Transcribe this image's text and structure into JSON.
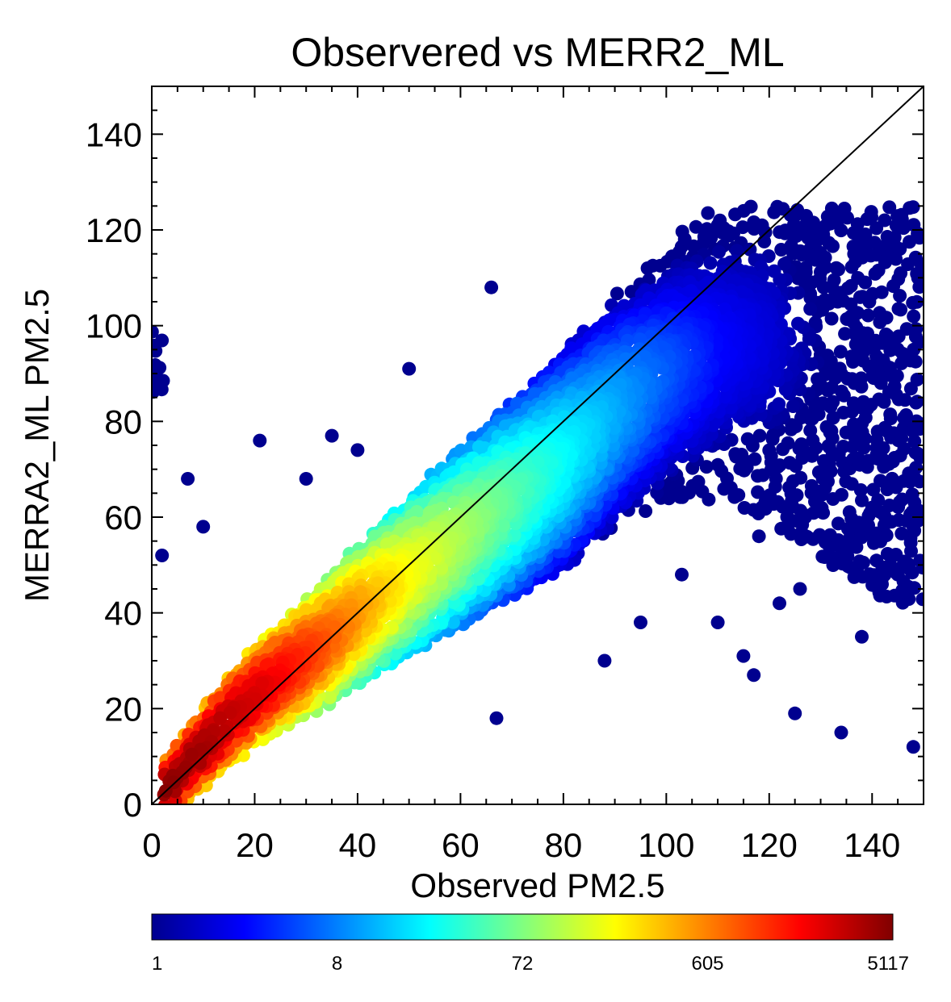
{
  "chart_data": {
    "type": "scatter",
    "subtype": "density-colored scatter (point count per bin)",
    "title": "Observered vs MERR2_ML",
    "xlabel": "Observed PM2.5",
    "ylabel": "MERRA2_ML PM2.5",
    "xlim": [
      0,
      150
    ],
    "ylim": [
      0,
      150
    ],
    "x_ticks": [
      0,
      20,
      40,
      60,
      80,
      100,
      120,
      140
    ],
    "y_ticks": [
      0,
      20,
      40,
      60,
      80,
      100,
      120,
      140
    ],
    "x_tick_labels": [
      "0",
      "20",
      "40",
      "60",
      "80",
      "100",
      "120",
      "140"
    ],
    "y_tick_labels": [
      "0",
      "20",
      "40",
      "60",
      "80",
      "100",
      "120",
      "140"
    ],
    "reference_line": {
      "type": "1:1",
      "from": [
        0,
        0
      ],
      "to": [
        150,
        150
      ],
      "color": "#000000"
    },
    "grid": false,
    "colorbar": {
      "position": "bottom",
      "scale": "log",
      "min": 1,
      "max": 5117,
      "tick_values": [
        1,
        8,
        72,
        605,
        5117
      ],
      "tick_labels": [
        "1",
        "8",
        "72",
        "605",
        "5117"
      ],
      "colormap": "jet",
      "colors": [
        "#00008f",
        "#0000ff",
        "#0080ff",
        "#00ffff",
        "#80ff80",
        "#ffff00",
        "#ff8000",
        "#ff0000",
        "#800000"
      ]
    },
    "density_core": {
      "description": "approximate ridge of highest point density (observed x, modeled y, approx. count)",
      "points": [
        {
          "x": 2,
          "y": 2,
          "count": 5117
        },
        {
          "x": 5,
          "y": 6,
          "count": 4500
        },
        {
          "x": 10,
          "y": 12,
          "count": 3800
        },
        {
          "x": 15,
          "y": 18,
          "count": 3000
        },
        {
          "x": 20,
          "y": 23,
          "count": 2500
        },
        {
          "x": 25,
          "y": 27,
          "count": 1800
        },
        {
          "x": 30,
          "y": 31,
          "count": 1200
        },
        {
          "x": 35,
          "y": 35,
          "count": 800
        },
        {
          "x": 40,
          "y": 40,
          "count": 500
        },
        {
          "x": 50,
          "y": 48,
          "count": 200
        },
        {
          "x": 60,
          "y": 56,
          "count": 100
        },
        {
          "x": 70,
          "y": 64,
          "count": 50
        },
        {
          "x": 80,
          "y": 72,
          "count": 25
        },
        {
          "x": 90,
          "y": 82,
          "count": 12
        },
        {
          "x": 100,
          "y": 90,
          "count": 6
        },
        {
          "x": 110,
          "y": 95,
          "count": 3
        },
        {
          "x": 120,
          "y": 97,
          "count": 2
        },
        {
          "x": 130,
          "y": 95,
          "count": 1
        },
        {
          "x": 140,
          "y": 93,
          "count": 1
        }
      ]
    },
    "isolated_points": [
      {
        "x": 7,
        "y": 68,
        "count": 1
      },
      {
        "x": 10,
        "y": 58,
        "count": 1
      },
      {
        "x": 21,
        "y": 76,
        "count": 1
      },
      {
        "x": 2,
        "y": 52,
        "count": 1
      },
      {
        "x": 66,
        "y": 108,
        "count": 1
      },
      {
        "x": 110,
        "y": 121,
        "count": 1
      },
      {
        "x": 110,
        "y": 38,
        "count": 1
      },
      {
        "x": 115,
        "y": 31,
        "count": 1
      },
      {
        "x": 117,
        "y": 27,
        "count": 1
      },
      {
        "x": 122,
        "y": 42,
        "count": 1
      },
      {
        "x": 125,
        "y": 19,
        "count": 1
      },
      {
        "x": 126,
        "y": 45,
        "count": 1
      },
      {
        "x": 134,
        "y": 15,
        "count": 1
      },
      {
        "x": 138,
        "y": 35,
        "count": 1
      },
      {
        "x": 148,
        "y": 12,
        "count": 1
      },
      {
        "x": 145,
        "y": 48,
        "count": 1
      },
      {
        "x": 103,
        "y": 48,
        "count": 1
      },
      {
        "x": 118,
        "y": 56,
        "count": 1
      },
      {
        "x": 127,
        "y": 60,
        "count": 1
      },
      {
        "x": 140,
        "y": 62,
        "count": 1
      },
      {
        "x": 148,
        "y": 58,
        "count": 1
      },
      {
        "x": 95,
        "y": 38,
        "count": 1
      },
      {
        "x": 88,
        "y": 30,
        "count": 1
      },
      {
        "x": 67,
        "y": 18,
        "count": 1
      },
      {
        "x": 50,
        "y": 91,
        "count": 1
      },
      {
        "x": 40,
        "y": 74,
        "count": 1
      },
      {
        "x": 30,
        "y": 68,
        "count": 1
      },
      {
        "x": 35,
        "y": 77,
        "count": 1
      }
    ]
  }
}
